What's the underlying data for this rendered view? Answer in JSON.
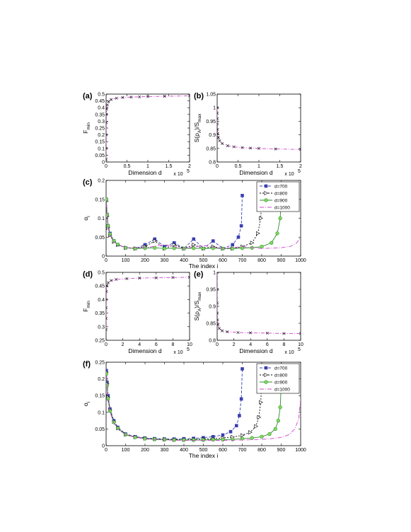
{
  "colors": {
    "d700": "#3a3fb0",
    "d800": "#000000",
    "d900": "#2e8b2e",
    "d1000": "#cc44cc",
    "fill900": "#7fdc5a",
    "curve": "#cc44cc",
    "marker": "#000000"
  },
  "chart_data": [
    {
      "id": "a",
      "panel_label": "(a)",
      "type": "line",
      "xlabel": "Dimension d",
      "ylabel": "F",
      "ylabel_sub": "min",
      "xscale_label": "x 10",
      "xlim": [
        0,
        200000
      ],
      "ylim": [
        0,
        0.5
      ],
      "xtick_labels": [
        "0",
        "0.5",
        "1",
        "1.5",
        "2"
      ],
      "ytick_labels": [
        "0",
        "0.05",
        "0.1",
        "0.15",
        "0.2",
        "0.25",
        "0.3",
        "0.35",
        "0.4",
        "0.45",
        "0.5"
      ],
      "series": [
        {
          "x": [
            50,
            100,
            200,
            400,
            800,
            1500,
            3000,
            6000,
            12000,
            25000,
            40000,
            60000,
            80000,
            100000,
            140000,
            200000
          ],
          "y": [
            0.02,
            0.1,
            0.2,
            0.29,
            0.35,
            0.39,
            0.42,
            0.445,
            0.46,
            0.47,
            0.475,
            0.478,
            0.48,
            0.482,
            0.484,
            0.487
          ]
        }
      ]
    },
    {
      "id": "b",
      "panel_label": "(b)",
      "type": "line",
      "xlabel": "Dimension d",
      "ylabel": "S(ρ",
      "ylabel_sub": "A",
      "ylabel_rest": ")/S",
      "ylabel_sub2": "max",
      "xscale_label": "x 10",
      "xlim": [
        0,
        200000
      ],
      "ylim": [
        0.8,
        1.05
      ],
      "xtick_labels": [
        "0",
        "0.5",
        "1",
        "1.5",
        "2"
      ],
      "ytick_labels": [
        "0.8",
        "0.85",
        "0.9",
        "0.95",
        "1",
        "1.05"
      ],
      "series": [
        {
          "x": [
            50,
            100,
            200,
            400,
            800,
            1500,
            3000,
            6000,
            12000,
            25000,
            40000,
            60000,
            80000,
            100000,
            140000,
            200000
          ],
          "y": [
            1.0,
            0.98,
            0.96,
            0.94,
            0.92,
            0.905,
            0.89,
            0.878,
            0.868,
            0.86,
            0.856,
            0.853,
            0.851,
            0.85,
            0.848,
            0.846
          ]
        }
      ]
    },
    {
      "id": "c",
      "panel_label": "(c)",
      "type": "line",
      "xlabel": "The index i",
      "ylabel": "α",
      "ylabel_sub": "i",
      "xlim": [
        0,
        1000
      ],
      "ylim": [
        0,
        0.2
      ],
      "xtick_labels": [
        "0",
        "100",
        "200",
        "300",
        "400",
        "500",
        "600",
        "700",
        "800",
        "900",
        "1000"
      ],
      "ytick_labels": [
        "0",
        "0.05",
        "0.1",
        "0.15",
        "0.2"
      ],
      "legend": [
        "d=700",
        "d=800",
        "d=900",
        "d=1000"
      ],
      "series": [
        {
          "name": "d=700",
          "x": [
            1,
            5,
            10,
            20,
            40,
            60,
            100,
            150,
            200,
            250,
            300,
            350,
            400,
            450,
            500,
            550,
            600,
            650,
            680,
            695,
            700
          ],
          "y": [
            0.15,
            0.11,
            0.08,
            0.06,
            0.04,
            0.03,
            0.022,
            0.02,
            0.03,
            0.045,
            0.025,
            0.035,
            0.02,
            0.045,
            0.02,
            0.04,
            0.02,
            0.03,
            0.05,
            0.08,
            0.16
          ]
        },
        {
          "name": "d=800",
          "x": [
            1,
            5,
            10,
            20,
            40,
            60,
            100,
            150,
            200,
            250,
            300,
            350,
            400,
            450,
            500,
            550,
            600,
            650,
            700,
            750,
            780,
            795,
            800
          ],
          "y": [
            0.145,
            0.105,
            0.075,
            0.055,
            0.038,
            0.03,
            0.022,
            0.02,
            0.025,
            0.04,
            0.02,
            0.03,
            0.02,
            0.03,
            0.02,
            0.025,
            0.02,
            0.02,
            0.025,
            0.035,
            0.06,
            0.1,
            0.16
          ]
        },
        {
          "name": "d=900",
          "x": [
            1,
            5,
            10,
            20,
            40,
            60,
            100,
            150,
            200,
            250,
            300,
            350,
            400,
            450,
            500,
            550,
            600,
            650,
            700,
            750,
            800,
            850,
            880,
            895,
            900
          ],
          "y": [
            0.15,
            0.11,
            0.08,
            0.058,
            0.04,
            0.031,
            0.022,
            0.02,
            0.021,
            0.022,
            0.02,
            0.021,
            0.02,
            0.021,
            0.02,
            0.021,
            0.02,
            0.02,
            0.021,
            0.022,
            0.025,
            0.035,
            0.06,
            0.1,
            0.16
          ]
        },
        {
          "name": "d=1000",
          "x": [
            1,
            5,
            10,
            20,
            40,
            60,
            100,
            200,
            300,
            400,
            500,
            600,
            700,
            800,
            900,
            950,
            980,
            1000
          ],
          "y": [
            0.14,
            0.1,
            0.075,
            0.055,
            0.038,
            0.03,
            0.022,
            0.022,
            0.03,
            0.02,
            0.028,
            0.02,
            0.025,
            0.02,
            0.022,
            0.026,
            0.035,
            0.05
          ]
        }
      ]
    },
    {
      "id": "d",
      "panel_label": "(d)",
      "type": "line",
      "xlabel": "Dimension d",
      "ylabel": "F",
      "ylabel_sub": "min",
      "xscale_label": "x 10",
      "xlim": [
        0,
        1000000
      ],
      "ylim": [
        0.25,
        0.5
      ],
      "xtick_labels": [
        "0",
        "2",
        "4",
        "6",
        "8",
        "10"
      ],
      "ytick_labels": [
        "0.25",
        "0.3",
        "0.35",
        "0.4",
        "0.45",
        "0.5"
      ],
      "series": [
        {
          "x": [
            50,
            200,
            600,
            1500,
            4000,
            10000,
            25000,
            60000,
            120000,
            250000,
            400000,
            600000,
            800000,
            1000000
          ],
          "y": [
            0.29,
            0.33,
            0.37,
            0.4,
            0.43,
            0.45,
            0.462,
            0.47,
            0.474,
            0.477,
            0.479,
            0.48,
            0.481,
            0.482
          ]
        }
      ]
    },
    {
      "id": "e",
      "panel_label": "(e)",
      "type": "line",
      "xlabel": "Dimension d",
      "ylabel": "S(ρ",
      "ylabel_sub": "A",
      "ylabel_rest": ")/S",
      "ylabel_sub2": "max",
      "xscale_label": "x 10",
      "xlim": [
        0,
        1000000
      ],
      "ylim": [
        0.8,
        1.0
      ],
      "xtick_labels": [
        "0",
        "2",
        "4",
        "6",
        "8",
        "10"
      ],
      "ytick_labels": [
        "0.8",
        "0.85",
        "0.9",
        "0.95",
        "1"
      ],
      "series": [
        {
          "x": [
            50,
            200,
            600,
            1500,
            4000,
            10000,
            25000,
            60000,
            120000,
            250000,
            400000,
            600000,
            800000,
            1000000
          ],
          "y": [
            1.0,
            0.95,
            0.91,
            0.88,
            0.86,
            0.845,
            0.835,
            0.828,
            0.825,
            0.823,
            0.822,
            0.821,
            0.82,
            0.82
          ]
        }
      ]
    },
    {
      "id": "f",
      "panel_label": "(f)",
      "type": "line",
      "xlabel": "The index i",
      "ylabel": "α",
      "ylabel_sub": "i",
      "xlim": [
        0,
        1000
      ],
      "ylim": [
        0,
        0.25
      ],
      "xtick_labels": [
        "0",
        "100",
        "200",
        "300",
        "400",
        "500",
        "600",
        "700",
        "800",
        "900",
        "1000"
      ],
      "ytick_labels": [
        "0",
        "0.05",
        "0.1",
        "0.15",
        "0.2",
        "0.25"
      ],
      "legend": [
        "d=700",
        "d=800",
        "d=900",
        "d=1000"
      ],
      "series": [
        {
          "name": "d=700",
          "x": [
            1,
            5,
            10,
            20,
            40,
            60,
            100,
            150,
            200,
            250,
            300,
            350,
            400,
            450,
            500,
            550,
            600,
            640,
            670,
            685,
            695,
            700
          ],
          "y": [
            0.225,
            0.19,
            0.15,
            0.11,
            0.075,
            0.055,
            0.035,
            0.027,
            0.023,
            0.021,
            0.02,
            0.02,
            0.021,
            0.022,
            0.024,
            0.027,
            0.032,
            0.042,
            0.06,
            0.09,
            0.14,
            0.23
          ]
        },
        {
          "name": "d=800",
          "x": [
            1,
            5,
            10,
            20,
            40,
            60,
            100,
            150,
            200,
            250,
            300,
            350,
            400,
            450,
            500,
            550,
            600,
            650,
            700,
            740,
            770,
            785,
            795,
            800
          ],
          "y": [
            0.22,
            0.185,
            0.145,
            0.107,
            0.072,
            0.053,
            0.034,
            0.026,
            0.022,
            0.02,
            0.019,
            0.018,
            0.018,
            0.019,
            0.02,
            0.021,
            0.023,
            0.026,
            0.031,
            0.04,
            0.058,
            0.085,
            0.13,
            0.2
          ]
        },
        {
          "name": "d=900",
          "x": [
            1,
            5,
            10,
            20,
            40,
            60,
            100,
            150,
            200,
            250,
            300,
            350,
            400,
            450,
            500,
            550,
            600,
            650,
            700,
            750,
            800,
            840,
            870,
            885,
            895,
            900
          ],
          "y": [
            0.215,
            0.18,
            0.14,
            0.104,
            0.07,
            0.052,
            0.033,
            0.025,
            0.021,
            0.019,
            0.018,
            0.017,
            0.017,
            0.017,
            0.017,
            0.018,
            0.018,
            0.019,
            0.021,
            0.023,
            0.027,
            0.035,
            0.05,
            0.075,
            0.115,
            0.18
          ]
        },
        {
          "name": "d=1000",
          "x": [
            1,
            5,
            10,
            20,
            40,
            60,
            100,
            200,
            300,
            400,
            500,
            600,
            700,
            800,
            850,
            900,
            940,
            970,
            990,
            1000
          ],
          "y": [
            0.21,
            0.175,
            0.135,
            0.1,
            0.068,
            0.05,
            0.032,
            0.02,
            0.017,
            0.016,
            0.016,
            0.016,
            0.017,
            0.019,
            0.021,
            0.025,
            0.033,
            0.05,
            0.08,
            0.14
          ]
        }
      ]
    }
  ]
}
